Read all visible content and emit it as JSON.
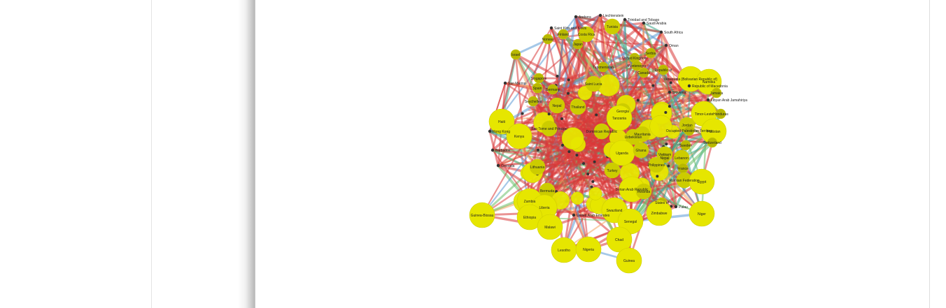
{
  "graph": {
    "colors": {
      "node_large": "#e6e600",
      "node_medium": "#cccc00",
      "node_small": "#b8b800",
      "node_dot": "#333333",
      "edge_red": "#d93a3a",
      "edge_blue": "#5b9bd5",
      "edge_green": "#6cc06c",
      "edge_orange": "#f4a460",
      "edge_teal": "#3aa68a"
    },
    "labels": [
      {
        "text": "Andorra",
        "size": "dot"
      },
      {
        "text": "Liechtenstein",
        "size": "dot"
      },
      {
        "text": "Trinidad and Tobago",
        "size": "dot"
      },
      {
        "text": "Saudi Arabia",
        "size": "dot"
      },
      {
        "text": "Tunisia",
        "size": "medium"
      },
      {
        "text": "Saint Kitts and Nevis",
        "size": "dot"
      },
      {
        "text": "South Africa",
        "size": "dot"
      },
      {
        "text": "Finland",
        "size": "small"
      },
      {
        "text": "Costa Rica",
        "size": "medium"
      },
      {
        "text": "Norway",
        "size": "small"
      },
      {
        "text": "Japan",
        "size": "small"
      },
      {
        "text": "Oman",
        "size": "dot"
      },
      {
        "text": "Israel",
        "size": "small"
      },
      {
        "text": "United Kingdom",
        "size": "small"
      },
      {
        "text": "Serbia",
        "size": "small"
      },
      {
        "text": "Turkmenistan",
        "size": "small"
      },
      {
        "text": "Montenegro",
        "size": "small"
      },
      {
        "text": "Canada",
        "size": "small"
      },
      {
        "text": "Republic of",
        "size": "small"
      },
      {
        "text": "Venezuela (Bolivarian Republic of)",
        "size": "large"
      },
      {
        "text": "Namibia",
        "size": "large"
      },
      {
        "text": "Singapore",
        "size": "small"
      },
      {
        "text": "Republic of Macedonia",
        "size": "dot"
      },
      {
        "text": "San Marino",
        "size": "dot"
      },
      {
        "text": "Spain",
        "size": "small"
      },
      {
        "text": "Germany",
        "size": "small"
      },
      {
        "text": "Saint Lucia",
        "size": "medium"
      },
      {
        "text": "Slovenia",
        "size": "dot"
      },
      {
        "text": "Jamaica",
        "size": "small"
      },
      {
        "text": "Libyan Arab Jamahiriya",
        "size": "dot"
      },
      {
        "text": "Seychelles",
        "size": "small"
      },
      {
        "text": "Nepal",
        "size": "medium"
      },
      {
        "text": "Thailand",
        "size": "medium"
      },
      {
        "text": "Georgia",
        "size": "medium"
      },
      {
        "text": "Tanzania",
        "size": "large"
      },
      {
        "text": "Timor-Leste",
        "size": "large"
      },
      {
        "text": "Honduras",
        "size": "small"
      },
      {
        "text": "Haiti",
        "size": "large"
      },
      {
        "text": "Sao Tome and Principe",
        "size": "medium"
      },
      {
        "text": "Hong Kong",
        "size": "dot"
      },
      {
        "text": "Kenya",
        "size": "large"
      },
      {
        "text": "Dominican Republic",
        "size": "medium"
      },
      {
        "text": "Mauritania",
        "size": "medium"
      },
      {
        "text": "Uzbekistan",
        "size": "medium"
      },
      {
        "text": "Jordan",
        "size": "medium"
      },
      {
        "text": "Occupied Palestinian Territory",
        "size": "small"
      },
      {
        "text": "Pakistan",
        "size": "large"
      },
      {
        "text": "Switzerland",
        "size": "small"
      },
      {
        "text": "Barbados",
        "size": "dot"
      },
      {
        "text": "Sweden",
        "size": "small"
      },
      {
        "text": "Grenada",
        "size": "dot"
      },
      {
        "text": "Uganda",
        "size": "large"
      },
      {
        "text": "Ghana",
        "size": "medium"
      },
      {
        "text": "Vietnam",
        "size": "medium"
      },
      {
        "text": "Lebanon",
        "size": "medium"
      },
      {
        "text": "Nepal",
        "size": "small"
      },
      {
        "text": "France",
        "size": "small"
      },
      {
        "text": "Philippines",
        "size": "medium"
      },
      {
        "text": "Lithuania",
        "size": "medium"
      },
      {
        "text": "Turkey",
        "size": "medium"
      },
      {
        "text": "Russian Federation",
        "size": "medium"
      },
      {
        "text": "Egypt",
        "size": "large"
      },
      {
        "text": "Syrian Arab Republic",
        "size": "large"
      },
      {
        "text": "Rwanda",
        "size": "medium"
      },
      {
        "text": "Bermuda",
        "size": "medium"
      },
      {
        "text": "Zambia",
        "size": "large"
      },
      {
        "text": "States of",
        "size": "small"
      },
      {
        "text": "Palau",
        "size": "dot"
      },
      {
        "text": "Liberia",
        "size": "large"
      },
      {
        "text": "Swaziland",
        "size": "large"
      },
      {
        "text": "Zimbabwe",
        "size": "large"
      },
      {
        "text": "Niger",
        "size": "large"
      },
      {
        "text": "Guinea-Bissau",
        "size": "large"
      },
      {
        "text": "Ethiopia",
        "size": "large"
      },
      {
        "text": "United Arab Emirates",
        "size": "dot"
      },
      {
        "text": "Senegal",
        "size": "large"
      },
      {
        "text": "Malawi",
        "size": "large"
      },
      {
        "text": "Chad",
        "size": "large"
      },
      {
        "text": "Lesotho",
        "size": "large"
      },
      {
        "text": "Nigeria",
        "size": "large"
      },
      {
        "text": "Guinea",
        "size": "large"
      }
    ]
  }
}
